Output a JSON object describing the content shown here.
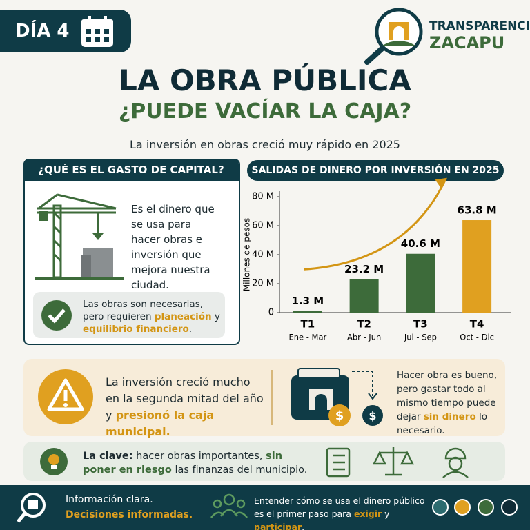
{
  "header": {
    "badge": "DÍA 4",
    "brand_top": "TRANSPARENCIA",
    "brand_bottom": "ZACAPU",
    "title": "LA OBRA PÚBLICA",
    "subtitle": "¿PUEDE VACÍAR LA CAJA?",
    "intro": "La inversión en obras creció muy rápido en 2025"
  },
  "capital": {
    "title": "¿QUÉ ES EL GASTO DE CAPITAL?",
    "text": "Es el dinero que se usa para hacer obras e inversión que mejora nuestra ciudad.",
    "note": [
      {
        "text": "Las obras son necesarias, pero requieren ",
        "highlight": false
      },
      {
        "text": "planeación",
        "highlight": true
      },
      {
        "text": " y ",
        "highlight": false
      },
      {
        "text": "equilibrio financiero",
        "highlight": true
      },
      {
        "text": ".",
        "highlight": false
      }
    ]
  },
  "chart_data": {
    "type": "bar",
    "title": "SALIDAS DE DINERO POR INVERSIÓN EN 2025",
    "y_label": "Millones de pesos",
    "categories": [
      "T1",
      "T2",
      "T3",
      "T4"
    ],
    "sublabels": [
      "Ene - Mar",
      "Abr - Jun",
      "Jul - Sep",
      "Oct - Dic"
    ],
    "values": [
      1.3,
      23.2,
      40.6,
      63.8
    ],
    "value_labels": [
      "1.3 M",
      "23.2 M",
      "40.6 M",
      "63.8 M"
    ],
    "colors": [
      "#3d6b3a",
      "#3d6b3a",
      "#3d6b3a",
      "#e0a020"
    ],
    "ylim": [
      0,
      80
    ],
    "yticks": [
      0,
      {
        "value": 20,
        "label": "20 M"
      },
      {
        "value": 40,
        "label": "40 M"
      },
      {
        "value": 60,
        "label": "60 M"
      },
      {
        "value": 80,
        "label": "80 M"
      }
    ],
    "grid": false
  },
  "warning": {
    "text": [
      {
        "text": "La inversión creció mucho en la segunda mitad del año y ",
        "highlight": false
      },
      {
        "text": "presionó la caja municipal.",
        "highlight": true
      }
    ],
    "side": [
      {
        "text": "Hacer obra es bueno, pero gastar todo al mismo tiempo puede dejar ",
        "highlight": false
      },
      {
        "text": "sin dinero",
        "highlight": true
      },
      {
        "text": " lo necesario.",
        "highlight": false
      }
    ]
  },
  "key": {
    "text": [
      {
        "text": "La clave:",
        "highlight": false,
        "bold": true
      },
      {
        "text": " hacer obras importantes, ",
        "highlight": false
      },
      {
        "text": "sin poner en riesgo",
        "highlight": true
      },
      {
        "text": " las finanzas del municipio.",
        "highlight": false
      }
    ]
  },
  "footer": {
    "left_top": "Información clara.",
    "left_bottom": "Decisiones informadas.",
    "right": [
      {
        "text": "Entender cómo se usa el dinero público es el primer paso para ",
        "highlight": false
      },
      {
        "text": "exigir",
        "highlight": true
      },
      {
        "text": " y ",
        "highlight": false
      },
      {
        "text": "participar",
        "highlight": true
      },
      {
        "text": ".",
        "highlight": false
      }
    ]
  }
}
